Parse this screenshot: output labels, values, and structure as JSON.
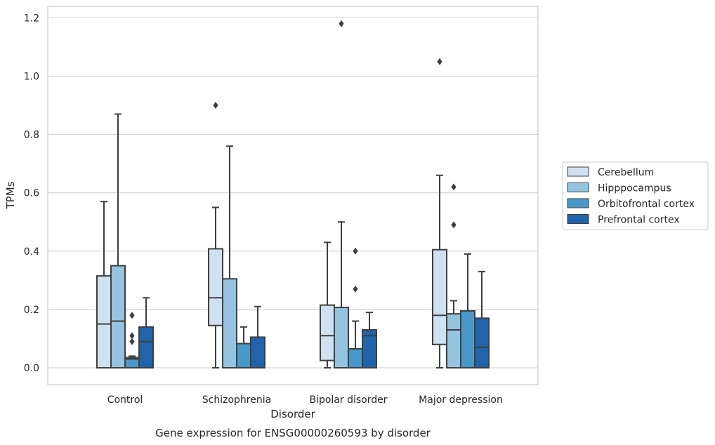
{
  "chart_data": {
    "type": "boxplot",
    "title": "Gene expression for ENSG00000260593 by disorder",
    "xlabel": "Disorder",
    "ylabel": "TPMs",
    "ylim": [
      -0.055,
      1.24
    ],
    "yticks": [
      0.0,
      0.2,
      0.4,
      0.6,
      0.8,
      1.0,
      1.2
    ],
    "ytick_labels": [
      "0.0",
      "0.2",
      "0.4",
      "0.6",
      "0.8",
      "1.0",
      "1.2"
    ],
    "grid": true,
    "legend_position": "right",
    "categories": [
      "Control",
      "Schizophrenia",
      "Bipolar disorder",
      "Major depression"
    ],
    "series": [
      {
        "name": "Cerebellum",
        "color": "#d0e1f2",
        "boxes": [
          {
            "min": 0.0,
            "q1": 0.0,
            "median": 0.15,
            "q3": 0.315,
            "max": 0.57,
            "outliers": []
          },
          {
            "min": 0.0,
            "q1": 0.145,
            "median": 0.24,
            "q3": 0.408,
            "max": 0.55,
            "outliers": [
              0.9
            ]
          },
          {
            "min": 0.0,
            "q1": 0.025,
            "median": 0.11,
            "q3": 0.215,
            "max": 0.43,
            "outliers": []
          },
          {
            "min": 0.0,
            "q1": 0.08,
            "median": 0.18,
            "q3": 0.405,
            "max": 0.66,
            "outliers": [
              1.05
            ]
          }
        ]
      },
      {
        "name": "Hipppocampus",
        "color": "#94c4df",
        "boxes": [
          {
            "min": 0.0,
            "q1": 0.0,
            "median": 0.16,
            "q3": 0.35,
            "max": 0.87,
            "outliers": []
          },
          {
            "min": 0.0,
            "q1": 0.0,
            "median": 0.0,
            "q3": 0.305,
            "max": 0.76,
            "outliers": []
          },
          {
            "min": 0.0,
            "q1": 0.0,
            "median": 0.0,
            "q3": 0.207,
            "max": 0.5,
            "outliers": [
              1.18
            ]
          },
          {
            "min": 0.0,
            "q1": 0.0,
            "median": 0.13,
            "q3": 0.185,
            "max": 0.23,
            "outliers": [
              0.49,
              0.62
            ]
          }
        ]
      },
      {
        "name": "Orbitofrontal cortex",
        "color": "#4a98c9",
        "boxes": [
          {
            "min": 0.0,
            "q1": 0.0,
            "median": 0.03,
            "q3": 0.035,
            "max": 0.04,
            "outliers": [
              0.09,
              0.11,
              0.18
            ]
          },
          {
            "min": 0.0,
            "q1": 0.0,
            "median": 0.0,
            "q3": 0.083,
            "max": 0.14,
            "outliers": []
          },
          {
            "min": 0.0,
            "q1": 0.0,
            "median": 0.0,
            "q3": 0.065,
            "max": 0.16,
            "outliers": [
              0.27,
              0.4
            ]
          },
          {
            "min": 0.0,
            "q1": 0.0,
            "median": 0.0,
            "q3": 0.195,
            "max": 0.39,
            "outliers": []
          }
        ]
      },
      {
        "name": "Prefrontal cortex",
        "color": "#2164ab",
        "boxes": [
          {
            "min": 0.0,
            "q1": 0.0,
            "median": 0.09,
            "q3": 0.14,
            "max": 0.24,
            "outliers": []
          },
          {
            "min": 0.0,
            "q1": 0.0,
            "median": 0.0,
            "q3": 0.105,
            "max": 0.21,
            "outliers": []
          },
          {
            "min": 0.0,
            "q1": 0.0,
            "median": 0.11,
            "q3": 0.13,
            "max": 0.19,
            "outliers": []
          },
          {
            "min": 0.0,
            "q1": 0.0,
            "median": 0.07,
            "q3": 0.17,
            "max": 0.33,
            "outliers": []
          }
        ]
      }
    ]
  }
}
